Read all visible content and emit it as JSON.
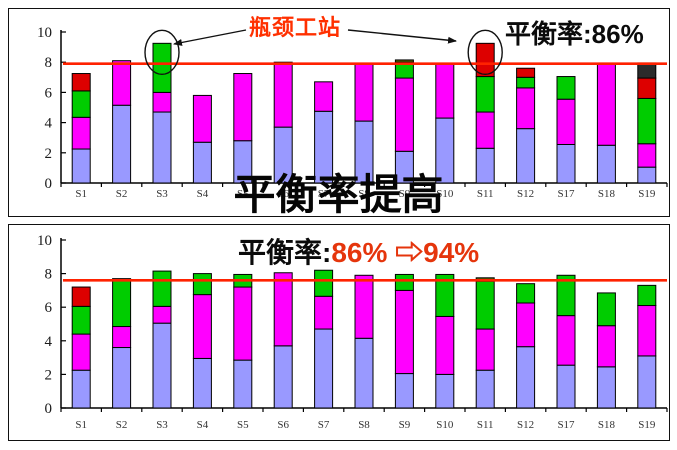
{
  "annotations": {
    "bottleneck_label": "瓶颈工站",
    "balance_before_text": "平衡率:86%",
    "middle_title": "平衡率提高",
    "balance_after_label": "平衡率:",
    "balance_after_change": "86% ⇨94%"
  },
  "colors": {
    "bottleneck_text": "#FF3000",
    "balance_change_text": "#E5350C",
    "takt_line": "#FF2200",
    "bar_blue": "#9999FF",
    "bar_magenta": "#FF00FF",
    "bar_green": "#00CC00",
    "bar_red": "#DD0000",
    "bar_dark": "#2B2B2B",
    "bar_olive": "#5A6400",
    "bar_brown": "#7A3300"
  },
  "chart_data": [
    {
      "type": "bar",
      "stacked": true,
      "name": "before-improvement",
      "categories": [
        "S1",
        "S2",
        "S3",
        "S4",
        "S5",
        "S6",
        "S7",
        "S8",
        "S9",
        "S10",
        "S11",
        "S12",
        "S17",
        "S18",
        "S19"
      ],
      "bars": [
        [
          [
            "blue",
            2.25
          ],
          [
            "magenta",
            2.1
          ],
          [
            "green",
            1.75
          ],
          [
            "red",
            1.15
          ]
        ],
        [
          [
            "blue",
            5.15
          ],
          [
            "magenta",
            2.95
          ]
        ],
        [
          [
            "blue",
            4.7
          ],
          [
            "magenta",
            1.3
          ],
          [
            "green",
            3.25
          ]
        ],
        [
          [
            "blue",
            2.7
          ],
          [
            "magenta",
            3.1
          ]
        ],
        [
          [
            "blue",
            2.8
          ],
          [
            "magenta",
            4.45
          ]
        ],
        [
          [
            "blue",
            3.7
          ],
          [
            "magenta",
            4.3
          ]
        ],
        [
          [
            "blue",
            4.75
          ],
          [
            "magenta",
            1.95
          ]
        ],
        [
          [
            "blue",
            4.1
          ],
          [
            "magenta",
            3.75
          ]
        ],
        [
          [
            "blue",
            2.1
          ],
          [
            "magenta",
            4.85
          ],
          [
            "green",
            1.05
          ],
          [
            "olive",
            0.15
          ]
        ],
        [
          [
            "blue",
            4.3
          ],
          [
            "magenta",
            3.55
          ]
        ],
        [
          [
            "blue",
            2.3
          ],
          [
            "magenta",
            2.4
          ],
          [
            "green",
            2.35
          ],
          [
            "red",
            2.2
          ]
        ],
        [
          [
            "blue",
            3.6
          ],
          [
            "magenta",
            2.7
          ],
          [
            "green",
            0.7
          ],
          [
            "red",
            0.6
          ]
        ],
        [
          [
            "blue",
            2.55
          ],
          [
            "magenta",
            3.0
          ],
          [
            "green",
            1.5
          ]
        ],
        [
          [
            "blue",
            2.5
          ],
          [
            "magenta",
            5.35
          ]
        ],
        [
          [
            "blue",
            1.05
          ],
          [
            "magenta",
            1.55
          ],
          [
            "green",
            3.0
          ],
          [
            "red",
            1.35
          ],
          [
            "dark",
            1.0
          ]
        ]
      ],
      "ylim": [
        0,
        10
      ],
      "yticks": [
        0,
        2,
        4,
        6,
        8,
        10
      ],
      "target_line": 7.9,
      "circled": [
        "S3",
        "S11"
      ],
      "grid": false,
      "legend": false
    },
    {
      "type": "bar",
      "stacked": true,
      "name": "after-improvement",
      "categories": [
        "S1",
        "S2",
        "S3",
        "S4",
        "S5",
        "S6",
        "S7",
        "S8",
        "S9",
        "S10",
        "S11",
        "S12",
        "S17",
        "S18",
        "S19"
      ],
      "bars": [
        [
          [
            "blue",
            2.25
          ],
          [
            "magenta",
            2.15
          ],
          [
            "green",
            1.65
          ],
          [
            "red",
            1.15
          ]
        ],
        [
          [
            "blue",
            3.6
          ],
          [
            "magenta",
            1.25
          ],
          [
            "green",
            2.75
          ],
          [
            "brown",
            0.1
          ]
        ],
        [
          [
            "blue",
            5.05
          ],
          [
            "magenta",
            1.0
          ],
          [
            "green",
            2.1
          ]
        ],
        [
          [
            "blue",
            2.95
          ],
          [
            "magenta",
            3.8
          ],
          [
            "green",
            1.25
          ]
        ],
        [
          [
            "blue",
            2.85
          ],
          [
            "magenta",
            4.35
          ],
          [
            "green",
            0.75
          ]
        ],
        [
          [
            "blue",
            3.7
          ],
          [
            "magenta",
            4.35
          ]
        ],
        [
          [
            "blue",
            4.7
          ],
          [
            "magenta",
            1.95
          ],
          [
            "green",
            1.55
          ]
        ],
        [
          [
            "blue",
            4.15
          ],
          [
            "magenta",
            3.75
          ]
        ],
        [
          [
            "blue",
            2.05
          ],
          [
            "magenta",
            4.95
          ],
          [
            "green",
            0.95
          ]
        ],
        [
          [
            "blue",
            2.0
          ],
          [
            "magenta",
            3.45
          ],
          [
            "green",
            2.5
          ]
        ],
        [
          [
            "blue",
            2.25
          ],
          [
            "magenta",
            2.45
          ],
          [
            "green",
            2.85
          ],
          [
            "olive",
            0.2
          ]
        ],
        [
          [
            "blue",
            3.65
          ],
          [
            "magenta",
            2.6
          ],
          [
            "green",
            1.15
          ]
        ],
        [
          [
            "blue",
            2.55
          ],
          [
            "magenta",
            2.95
          ],
          [
            "green",
            2.4
          ]
        ],
        [
          [
            "blue",
            2.45
          ],
          [
            "magenta",
            2.45
          ],
          [
            "green",
            1.95
          ]
        ],
        [
          [
            "blue",
            3.1
          ],
          [
            "magenta",
            3.0
          ],
          [
            "green",
            1.2
          ]
        ]
      ],
      "ylim": [
        0,
        10
      ],
      "yticks": [
        0,
        2,
        4,
        6,
        8,
        10
      ],
      "target_line": 7.6,
      "circled": [],
      "grid": false,
      "legend": false
    }
  ]
}
